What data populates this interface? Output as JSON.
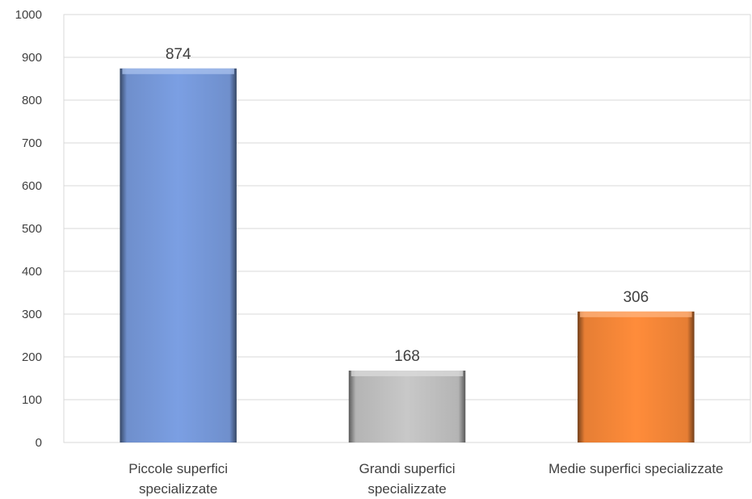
{
  "chart_data": {
    "type": "bar",
    "categories": [
      [
        "Piccole superfici",
        "specializzate"
      ],
      [
        "Grandi superfici",
        "specializzate"
      ],
      [
        "Medie superfici specializzate"
      ]
    ],
    "values": [
      874,
      168,
      306
    ],
    "data_labels": [
      "874",
      "168",
      "306"
    ],
    "colors": [
      "#7B9FE3",
      "#C8C8C8",
      "#FF8C3A"
    ],
    "ylim": [
      0,
      1000
    ],
    "yticks": [
      0,
      100,
      200,
      300,
      400,
      500,
      600,
      700,
      800,
      900,
      1000
    ],
    "grid": true,
    "legend": "none",
    "title": "",
    "xlabel": "",
    "ylabel": ""
  }
}
